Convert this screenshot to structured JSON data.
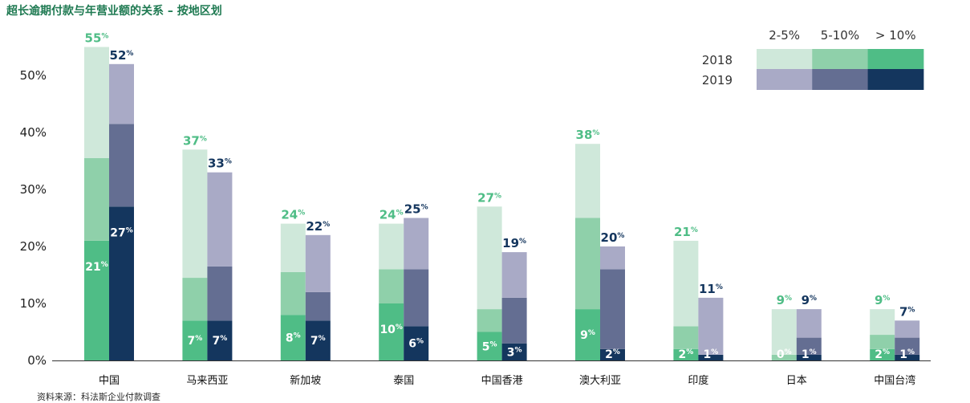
{
  "title": "超长逾期付款与年营业额的关系 – 按地区划",
  "source": "资料来源：科法斯企业付款调查",
  "chart_data": {
    "type": "bar",
    "stacked": true,
    "ylim": [
      0,
      55
    ],
    "yticks": [
      0,
      10,
      20,
      30,
      40,
      50
    ],
    "ytick_labels": [
      "0%",
      "10%",
      "20%",
      "30%",
      "40%",
      "50%"
    ],
    "categories": [
      "中国",
      "马来西亚",
      "新加坡",
      "泰国",
      "中国香港",
      "澳大利亚",
      "印度",
      "日本",
      "中国台湾"
    ],
    "segment_labels": [
      "2-5%",
      "5-10%",
      "> 10%"
    ],
    "years": [
      "2018",
      "2019"
    ],
    "series": [
      {
        "name": "2018",
        "colors": [
          "#cfe8da",
          "#8fd0aa",
          "#4fbd86"
        ],
        "total_color": "#4fbd86",
        "totals": [
          55,
          37,
          24,
          24,
          27,
          38,
          21,
          9,
          9
        ],
        "gt10": [
          21,
          7,
          8,
          10,
          5,
          9,
          2,
          0,
          2
        ],
        "s5_10": [
          14.5,
          7.5,
          7.5,
          6,
          4,
          16,
          4,
          1,
          2.5
        ],
        "s2_5": [
          19.5,
          22.5,
          8.5,
          8,
          18,
          13,
          15,
          8,
          4.5
        ]
      },
      {
        "name": "2019",
        "colors": [
          "#a9aac6",
          "#646e92",
          "#14365e"
        ],
        "total_color": "#14365e",
        "totals": [
          52,
          33,
          22,
          25,
          19,
          20,
          11,
          9,
          7
        ],
        "gt10": [
          27,
          7,
          7,
          6,
          3,
          2,
          1,
          1,
          1
        ],
        "s5_10": [
          14.5,
          9.5,
          5,
          10,
          8,
          14,
          0,
          3,
          3
        ],
        "s2_5": [
          10.5,
          16.5,
          10,
          9,
          8,
          4,
          10,
          5,
          3
        ]
      }
    ],
    "pct_suffix": "%",
    "grid": false,
    "legend_position": "top-right"
  }
}
